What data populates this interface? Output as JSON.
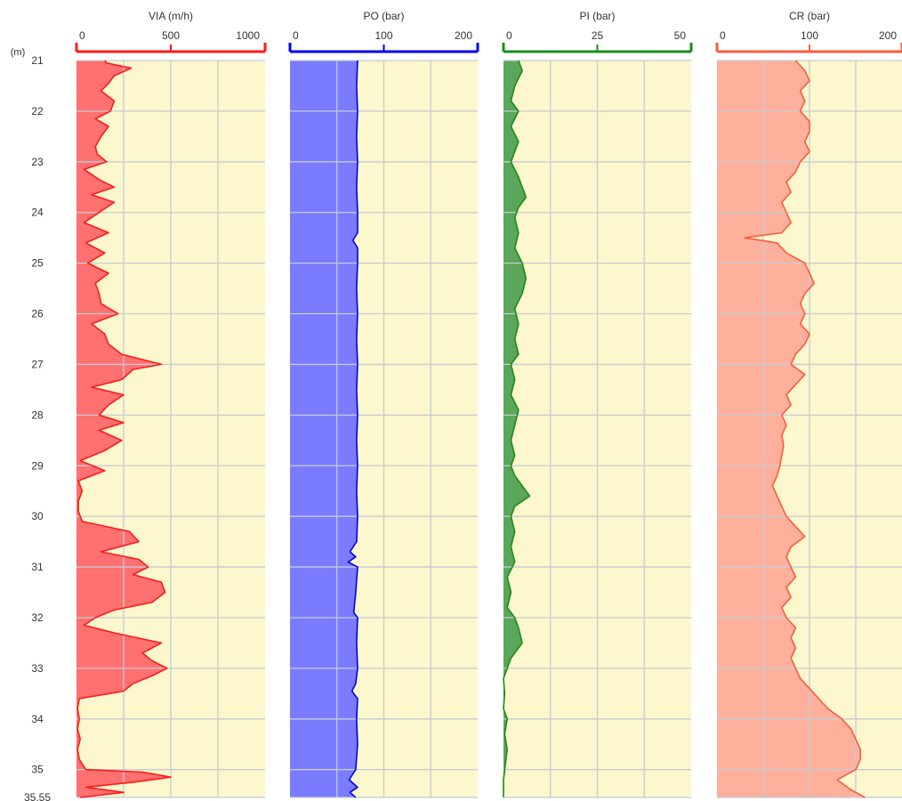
{
  "chart_data": {
    "type": "area",
    "depth_unit_label": "(m)",
    "depth_ticks": [
      "21",
      "22",
      "23",
      "24",
      "25",
      "26",
      "27",
      "28",
      "29",
      "30",
      "31",
      "32",
      "33",
      "34",
      "35",
      "35,55"
    ],
    "depth_tick_values": [
      21,
      22,
      23,
      24,
      25,
      26,
      27,
      28,
      29,
      30,
      31,
      32,
      33,
      34,
      35,
      35.55
    ],
    "ylim": [
      21,
      35.55
    ],
    "background_color": "#fdf7cd",
    "grid_color": "#c3ccd4",
    "tracks": [
      {
        "name": "VIA (m/h)",
        "xlim": [
          0,
          1000
        ],
        "x_ticks": [
          "0",
          "500",
          "1000"
        ],
        "x_tick_values": [
          0,
          500,
          1000
        ],
        "line_color": "#ff1a1a",
        "fill_color": "#ff7070",
        "depth": [
          21.0,
          21.05,
          21.15,
          21.3,
          21.45,
          21.6,
          21.8,
          22.0,
          22.15,
          22.3,
          22.5,
          22.7,
          22.85,
          23.0,
          23.15,
          23.35,
          23.5,
          23.65,
          23.8,
          24.0,
          24.2,
          24.4,
          24.6,
          24.8,
          25.0,
          25.2,
          25.4,
          25.6,
          25.8,
          26.0,
          26.2,
          26.4,
          26.6,
          26.8,
          27.0,
          27.1,
          27.3,
          27.45,
          27.6,
          27.8,
          28.0,
          28.15,
          28.3,
          28.5,
          28.7,
          28.9,
          29.1,
          29.3,
          29.5,
          29.7,
          29.9,
          30.1,
          30.3,
          30.5,
          30.7,
          30.85,
          31.0,
          31.15,
          31.3,
          31.5,
          31.7,
          31.85,
          32.0,
          32.15,
          32.3,
          32.5,
          32.7,
          32.85,
          33.0,
          33.15,
          33.3,
          33.45,
          33.6,
          33.8,
          34.0,
          34.2,
          34.4,
          34.6,
          34.8,
          35.0,
          35.05,
          35.15,
          35.25,
          35.35,
          35.45,
          35.55
        ],
        "values": [
          150,
          160,
          290,
          200,
          170,
          130,
          200,
          180,
          100,
          170,
          130,
          100,
          110,
          160,
          40,
          120,
          200,
          80,
          200,
          120,
          40,
          170,
          50,
          150,
          60,
          170,
          100,
          120,
          130,
          220,
          80,
          150,
          170,
          240,
          450,
          300,
          240,
          80,
          250,
          170,
          120,
          250,
          120,
          240,
          150,
          20,
          150,
          10,
          30,
          10,
          10,
          30,
          280,
          330,
          130,
          330,
          380,
          300,
          450,
          470,
          400,
          200,
          100,
          40,
          200,
          450,
          350,
          400,
          480,
          400,
          300,
          250,
          15,
          5,
          15,
          5,
          20,
          5,
          15,
          50,
          350,
          500,
          300,
          50,
          250,
          20
        ]
      },
      {
        "name": "PO (bar)",
        "xlim": [
          0,
          200
        ],
        "x_ticks": [
          "0",
          "100",
          "200"
        ],
        "x_tick_values": [
          0,
          100,
          200
        ],
        "line_color": "#0000ee",
        "fill_color": "#7b7bff",
        "depth": [
          21.0,
          21.5,
          22.0,
          22.5,
          23.0,
          23.5,
          24.0,
          24.4,
          24.55,
          24.7,
          25.0,
          25.5,
          26.0,
          26.5,
          27.0,
          27.5,
          28.0,
          28.5,
          29.0,
          29.5,
          30.0,
          30.5,
          30.7,
          30.8,
          30.9,
          31.0,
          31.5,
          31.9,
          32.0,
          32.5,
          33.0,
          33.3,
          33.45,
          33.6,
          34.0,
          34.5,
          35.0,
          35.2,
          35.35,
          35.45,
          35.55
        ],
        "values": [
          72,
          71,
          72,
          71,
          72,
          71,
          72,
          72,
          67,
          72,
          72,
          71,
          72,
          71,
          72,
          71,
          72,
          71,
          72,
          71,
          72,
          71,
          64,
          70,
          62,
          72,
          70,
          68,
          72,
          71,
          72,
          70,
          66,
          72,
          71,
          72,
          70,
          63,
          72,
          64,
          70
        ]
      },
      {
        "name": "PI (bar)",
        "xlim": [
          0,
          50
        ],
        "x_ticks": [
          "0",
          "25",
          "50"
        ],
        "x_tick_values": [
          0,
          25,
          50
        ],
        "line_color": "#1a8c1a",
        "fill_color": "#5aa65a",
        "depth": [
          21.0,
          21.2,
          21.5,
          21.8,
          22.0,
          22.3,
          22.6,
          23.0,
          23.3,
          23.5,
          23.7,
          23.9,
          24.1,
          24.4,
          24.7,
          25.0,
          25.3,
          25.6,
          25.9,
          26.2,
          26.5,
          26.8,
          27.0,
          27.3,
          27.6,
          27.9,
          28.2,
          28.5,
          28.8,
          29.0,
          29.2,
          29.4,
          29.6,
          29.8,
          30.0,
          30.3,
          30.6,
          30.9,
          31.2,
          31.5,
          31.8,
          32.0,
          32.2,
          32.5,
          32.8,
          33.0,
          33.2,
          33.5,
          33.8,
          34.0,
          34.3,
          34.6,
          34.9,
          35.2,
          35.55
        ],
        "values": [
          4,
          5,
          3,
          2,
          4,
          2,
          4,
          2,
          4,
          5,
          6,
          4,
          3,
          4,
          3,
          5,
          6,
          5,
          3,
          4,
          3,
          4,
          2,
          3,
          2,
          4,
          3,
          2,
          3,
          2,
          3,
          5,
          7,
          3,
          2,
          3,
          2,
          3,
          1,
          2,
          1,
          3,
          4,
          5,
          2,
          1,
          0,
          0.3,
          0,
          1,
          0.3,
          1,
          0.5,
          0,
          0
        ]
      },
      {
        "name": "CR (bar)",
        "xlim": [
          0,
          200
        ],
        "x_ticks": [
          "0",
          "100",
          "200"
        ],
        "x_tick_values": [
          0,
          100,
          200
        ],
        "line_color": "#ff5a3c",
        "fill_color": "#ffb09d",
        "depth": [
          21.0,
          21.2,
          21.4,
          21.6,
          21.8,
          22.0,
          22.2,
          22.4,
          22.6,
          22.8,
          23.0,
          23.2,
          23.4,
          23.6,
          23.8,
          24.0,
          24.2,
          24.4,
          24.5,
          24.6,
          24.8,
          25.0,
          25.2,
          25.4,
          25.6,
          25.8,
          26.0,
          26.2,
          26.4,
          26.6,
          26.8,
          27.0,
          27.2,
          27.4,
          27.6,
          27.8,
          28.0,
          28.2,
          28.4,
          28.6,
          28.8,
          29.0,
          29.2,
          29.4,
          29.6,
          29.8,
          30.0,
          30.2,
          30.4,
          30.6,
          30.8,
          31.0,
          31.2,
          31.4,
          31.6,
          31.8,
          32.0,
          32.2,
          32.4,
          32.6,
          32.8,
          33.0,
          33.2,
          33.4,
          33.6,
          33.8,
          34.0,
          34.2,
          34.4,
          34.6,
          34.8,
          35.0,
          35.2,
          35.4,
          35.55
        ],
        "values": [
          85,
          95,
          100,
          90,
          95,
          90,
          100,
          100,
          95,
          100,
          90,
          85,
          75,
          80,
          70,
          75,
          80,
          70,
          30,
          65,
          75,
          95,
          100,
          105,
          95,
          90,
          95,
          90,
          100,
          95,
          85,
          80,
          95,
          85,
          75,
          80,
          70,
          75,
          70,
          72,
          70,
          68,
          65,
          60,
          65,
          70,
          75,
          85,
          95,
          80,
          75,
          80,
          85,
          75,
          80,
          70,
          75,
          85,
          80,
          85,
          80,
          85,
          90,
          100,
          110,
          120,
          135,
          145,
          150,
          155,
          155,
          150,
          130,
          145,
          160
        ]
      }
    ]
  }
}
